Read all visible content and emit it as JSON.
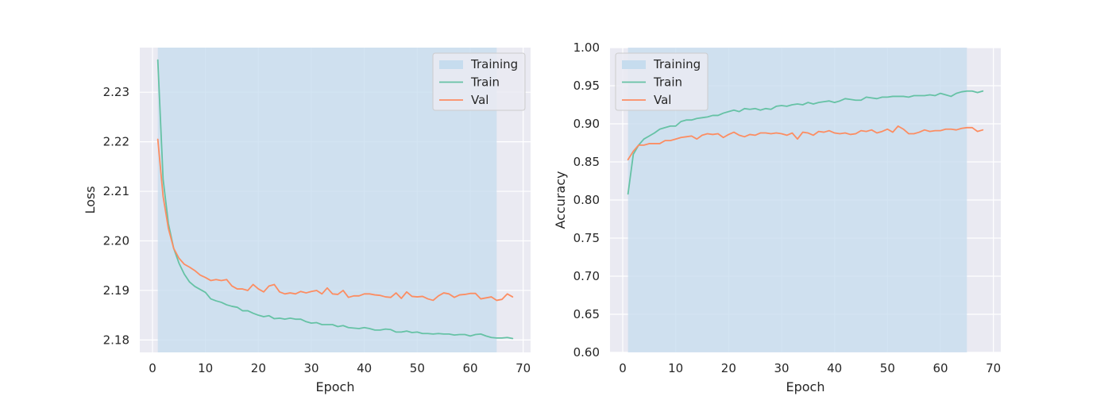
{
  "colors": {
    "plot_bg": "#eaeaf2",
    "grid": "#ffffff",
    "training_span": "#c6dcee",
    "train": "#66c2a5",
    "val": "#fc8d62",
    "legend_bg": "#eaeaf2",
    "legend_border": "#cccccc"
  },
  "chart_data": [
    {
      "type": "line",
      "xlabel": "Epoch",
      "ylabel": "Loss",
      "xlim": [
        -2.4,
        71.4
      ],
      "ylim": [
        2.1775,
        2.239
      ],
      "xticks": [
        0,
        10,
        20,
        30,
        40,
        50,
        60,
        70
      ],
      "yticks": [
        2.18,
        2.19,
        2.2,
        2.21,
        2.22,
        2.23
      ],
      "ytick_labels": [
        "2.18",
        "2.19",
        "2.20",
        "2.21",
        "2.22",
        "2.23"
      ],
      "grid": true,
      "legend": {
        "position": "top-right",
        "entries": [
          "Training",
          "Train",
          "Val"
        ]
      },
      "span": {
        "name": "Training",
        "x_start": 1,
        "x_end": 65
      },
      "series": [
        {
          "name": "Train",
          "x": [
            1,
            2,
            3,
            4,
            5,
            6,
            7,
            8,
            9,
            10,
            11,
            12,
            13,
            14,
            15,
            16,
            17,
            18,
            19,
            20,
            21,
            22,
            23,
            24,
            25,
            26,
            27,
            28,
            29,
            30,
            31,
            32,
            33,
            34,
            35,
            36,
            37,
            38,
            39,
            40,
            41,
            42,
            43,
            44,
            45,
            46,
            47,
            48,
            49,
            50,
            51,
            52,
            53,
            54,
            55,
            56,
            57,
            58,
            59,
            60,
            61,
            62,
            63,
            64,
            65,
            66,
            67,
            68
          ],
          "y": [
            2.2365,
            2.2125,
            2.2035,
            2.1985,
            2.1955,
            2.1933,
            2.1917,
            2.1908,
            2.1902,
            2.1896,
            2.1883,
            2.1879,
            2.1876,
            2.1871,
            2.1868,
            2.1866,
            2.1859,
            2.1859,
            2.1854,
            2.185,
            2.1847,
            2.1849,
            2.1843,
            2.1844,
            2.1842,
            2.1844,
            2.1842,
            2.1842,
            2.1837,
            2.1834,
            2.1835,
            2.1831,
            2.1831,
            2.1831,
            2.1827,
            2.1829,
            2.1825,
            2.1824,
            2.1823,
            2.1825,
            2.1823,
            2.182,
            2.182,
            2.1822,
            2.1821,
            2.1816,
            2.1816,
            2.1818,
            2.1815,
            2.1816,
            2.1813,
            2.1813,
            2.1812,
            2.1813,
            2.1812,
            2.1812,
            2.181,
            2.1811,
            2.1811,
            2.1808,
            2.1811,
            2.1812,
            2.1808,
            2.1805,
            2.1804,
            2.1804,
            2.1805,
            2.1803
          ]
        },
        {
          "name": "Val",
          "x": [
            1,
            2,
            3,
            4,
            5,
            6,
            7,
            8,
            9,
            10,
            11,
            12,
            13,
            14,
            15,
            16,
            17,
            18,
            19,
            20,
            21,
            22,
            23,
            24,
            25,
            26,
            27,
            28,
            29,
            30,
            31,
            32,
            33,
            34,
            35,
            36,
            37,
            38,
            39,
            40,
            41,
            42,
            43,
            44,
            45,
            46,
            47,
            48,
            49,
            50,
            51,
            52,
            53,
            54,
            55,
            56,
            57,
            58,
            59,
            60,
            61,
            62,
            63,
            64,
            65,
            66,
            67,
            68
          ],
          "y": [
            2.2205,
            2.209,
            2.2025,
            2.1985,
            2.1965,
            2.1953,
            2.1947,
            2.194,
            2.1931,
            2.1926,
            2.192,
            2.1922,
            2.192,
            2.1922,
            2.1909,
            2.1903,
            2.1903,
            2.19,
            2.1912,
            2.1903,
            2.1897,
            2.1909,
            2.1912,
            2.1897,
            2.1893,
            2.1895,
            2.1893,
            2.1898,
            2.1895,
            2.1898,
            2.19,
            2.1893,
            2.1905,
            2.1893,
            2.1892,
            2.19,
            2.1886,
            2.1889,
            2.1889,
            2.1893,
            2.1893,
            2.1891,
            2.189,
            2.1887,
            2.1886,
            2.1895,
            2.1884,
            2.1897,
            2.1888,
            2.1887,
            2.1888,
            2.1883,
            2.188,
            2.1889,
            2.1895,
            2.1893,
            2.1886,
            2.1891,
            2.1892,
            2.1894,
            2.1894,
            2.1883,
            2.1885,
            2.1887,
            2.188,
            2.1882,
            2.1893,
            2.1887
          ]
        }
      ]
    },
    {
      "type": "line",
      "xlabel": "Epoch",
      "ylabel": "Accuracy",
      "xlim": [
        -2.4,
        71.4
      ],
      "ylim": [
        0.6,
        1.0
      ],
      "xticks": [
        0,
        10,
        20,
        30,
        40,
        50,
        60,
        70
      ],
      "yticks": [
        0.6,
        0.65,
        0.7,
        0.75,
        0.8,
        0.85,
        0.9,
        0.95,
        1.0
      ],
      "ytick_labels": [
        "0.60",
        "0.65",
        "0.70",
        "0.75",
        "0.80",
        "0.85",
        "0.90",
        "0.95",
        "1.00"
      ],
      "grid": true,
      "legend": {
        "position": "top-left",
        "entries": [
          "Training",
          "Train",
          "Val"
        ]
      },
      "span": {
        "name": "Training",
        "x_start": 1,
        "x_end": 65
      },
      "series": [
        {
          "name": "Train",
          "x": [
            1,
            2,
            3,
            4,
            5,
            6,
            7,
            8,
            9,
            10,
            11,
            12,
            13,
            14,
            15,
            16,
            17,
            18,
            19,
            20,
            21,
            22,
            23,
            24,
            25,
            26,
            27,
            28,
            29,
            30,
            31,
            32,
            33,
            34,
            35,
            36,
            37,
            38,
            39,
            40,
            41,
            42,
            43,
            44,
            45,
            46,
            47,
            48,
            49,
            50,
            51,
            52,
            53,
            54,
            55,
            56,
            57,
            58,
            59,
            60,
            61,
            62,
            63,
            64,
            65,
            66,
            67,
            68
          ],
          "y": [
            0.808,
            0.86,
            0.872,
            0.88,
            0.884,
            0.888,
            0.893,
            0.895,
            0.897,
            0.897,
            0.903,
            0.905,
            0.905,
            0.907,
            0.908,
            0.909,
            0.911,
            0.911,
            0.914,
            0.916,
            0.918,
            0.916,
            0.92,
            0.919,
            0.92,
            0.918,
            0.92,
            0.919,
            0.923,
            0.924,
            0.923,
            0.925,
            0.926,
            0.925,
            0.928,
            0.926,
            0.928,
            0.929,
            0.93,
            0.928,
            0.93,
            0.933,
            0.932,
            0.931,
            0.931,
            0.935,
            0.934,
            0.933,
            0.935,
            0.935,
            0.936,
            0.936,
            0.936,
            0.935,
            0.937,
            0.937,
            0.937,
            0.938,
            0.937,
            0.94,
            0.938,
            0.936,
            0.94,
            0.942,
            0.943,
            0.943,
            0.941,
            0.943
          ]
        },
        {
          "name": "Val",
          "x": [
            1,
            2,
            3,
            4,
            5,
            6,
            7,
            8,
            9,
            10,
            11,
            12,
            13,
            14,
            15,
            16,
            17,
            18,
            19,
            20,
            21,
            22,
            23,
            24,
            25,
            26,
            27,
            28,
            29,
            30,
            31,
            32,
            33,
            34,
            35,
            36,
            37,
            38,
            39,
            40,
            41,
            42,
            43,
            44,
            45,
            46,
            47,
            48,
            49,
            50,
            51,
            52,
            53,
            54,
            55,
            56,
            57,
            58,
            59,
            60,
            61,
            62,
            63,
            64,
            65,
            66,
            67,
            68
          ],
          "y": [
            0.853,
            0.864,
            0.872,
            0.872,
            0.874,
            0.874,
            0.874,
            0.878,
            0.878,
            0.88,
            0.882,
            0.883,
            0.884,
            0.88,
            0.885,
            0.887,
            0.886,
            0.887,
            0.882,
            0.886,
            0.889,
            0.885,
            0.883,
            0.886,
            0.885,
            0.888,
            0.888,
            0.887,
            0.888,
            0.887,
            0.885,
            0.888,
            0.88,
            0.889,
            0.888,
            0.885,
            0.89,
            0.889,
            0.891,
            0.888,
            0.887,
            0.888,
            0.886,
            0.887,
            0.891,
            0.89,
            0.892,
            0.888,
            0.89,
            0.893,
            0.889,
            0.897,
            0.893,
            0.887,
            0.887,
            0.889,
            0.892,
            0.89,
            0.891,
            0.891,
            0.893,
            0.893,
            0.892,
            0.894,
            0.895,
            0.895,
            0.89,
            0.892
          ]
        }
      ]
    }
  ]
}
